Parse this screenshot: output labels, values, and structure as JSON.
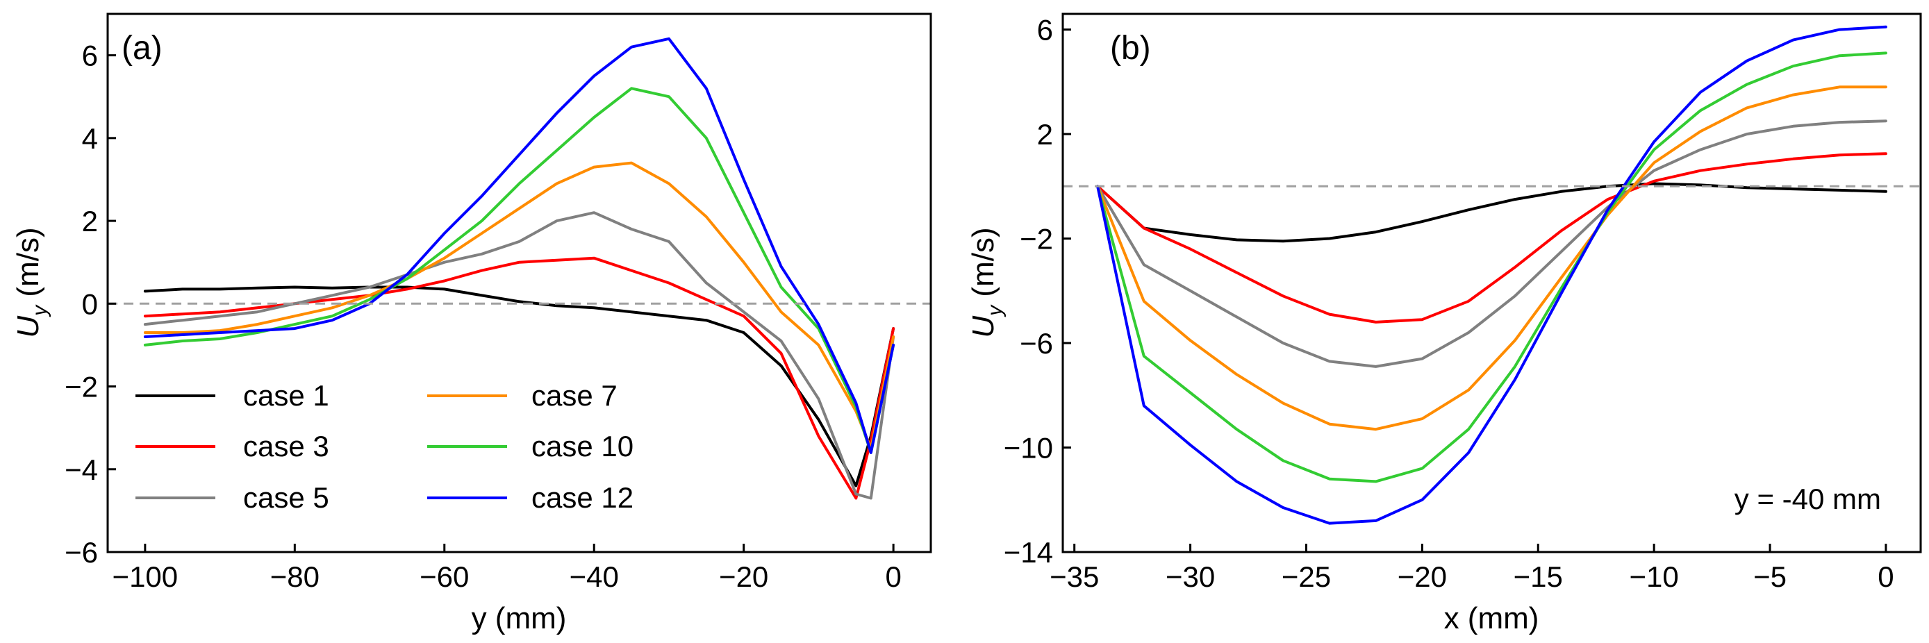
{
  "chart_data": [
    {
      "type": "line",
      "panel_label": "(a)",
      "xlabel": "y (mm)",
      "ylabel_main": "U",
      "ylabel_sub": "y",
      "ylabel_unit": " (m/s)",
      "xlim": [
        -105,
        5
      ],
      "ylim": [
        -6,
        7
      ],
      "xticks": [
        -100,
        -80,
        -60,
        -40,
        -20,
        0
      ],
      "xtick_labels": [
        "−100",
        "−80",
        "−60",
        "−40",
        "−20",
        "0"
      ],
      "yticks": [
        -6,
        -4,
        -2,
        0,
        2,
        4,
        6
      ],
      "ytick_labels": [
        "−6",
        "−4",
        "−2",
        "0",
        "2",
        "4",
        "6"
      ],
      "zero_line": 0,
      "legend_location": "lower-left",
      "series": [
        {
          "name": "case 1",
          "color": "#000000",
          "x": [
            -100,
            -95,
            -90,
            -85,
            -80,
            -75,
            -70,
            -65,
            -60,
            -55,
            -50,
            -45,
            -40,
            -35,
            -30,
            -25,
            -20,
            -15,
            -10,
            -5,
            -3,
            0
          ],
          "y": [
            0.3,
            0.35,
            0.35,
            0.38,
            0.4,
            0.38,
            0.4,
            0.4,
            0.35,
            0.2,
            0.05,
            -0.05,
            -0.1,
            -0.2,
            -0.3,
            -0.4,
            -0.7,
            -1.5,
            -2.8,
            -4.4,
            -3.2,
            -0.6
          ]
        },
        {
          "name": "case 3",
          "color": "#ff0000",
          "x": [
            -100,
            -95,
            -90,
            -85,
            -80,
            -75,
            -70,
            -65,
            -60,
            -55,
            -50,
            -45,
            -40,
            -35,
            -30,
            -25,
            -20,
            -15,
            -10,
            -5,
            -3,
            0
          ],
          "y": [
            -0.3,
            -0.25,
            -0.2,
            -0.1,
            0,
            0.1,
            0.2,
            0.35,
            0.55,
            0.8,
            1.0,
            1.05,
            1.1,
            0.8,
            0.5,
            0.1,
            -0.3,
            -1.2,
            -3.2,
            -4.7,
            -3.3,
            -0.6
          ]
        },
        {
          "name": "case 5",
          "color": "#808080",
          "x": [
            -100,
            -95,
            -90,
            -85,
            -80,
            -75,
            -70,
            -65,
            -60,
            -55,
            -50,
            -45,
            -40,
            -35,
            -30,
            -25,
            -20,
            -15,
            -10,
            -5,
            -3,
            0
          ],
          "y": [
            -0.5,
            -0.4,
            -0.3,
            -0.2,
            0,
            0.2,
            0.4,
            0.7,
            1.0,
            1.2,
            1.5,
            2.0,
            2.2,
            1.8,
            1.5,
            0.5,
            -0.2,
            -0.9,
            -2.3,
            -4.6,
            -4.7,
            -0.8
          ]
        },
        {
          "name": "case 7",
          "color": "#ff8c00",
          "x": [
            -100,
            -95,
            -90,
            -85,
            -80,
            -75,
            -70,
            -65,
            -60,
            -55,
            -50,
            -45,
            -40,
            -35,
            -30,
            -25,
            -20,
            -15,
            -10,
            -5,
            -3,
            0
          ],
          "y": [
            -0.7,
            -0.7,
            -0.65,
            -0.5,
            -0.3,
            -0.1,
            0.2,
            0.6,
            1.1,
            1.7,
            2.3,
            2.9,
            3.3,
            3.4,
            2.9,
            2.1,
            1.0,
            -0.2,
            -1.0,
            -2.6,
            -3.5,
            -0.8
          ]
        },
        {
          "name": "case 10",
          "color": "#33cc33",
          "x": [
            -100,
            -95,
            -90,
            -85,
            -80,
            -75,
            -70,
            -65,
            -60,
            -55,
            -50,
            -45,
            -40,
            -35,
            -30,
            -25,
            -20,
            -15,
            -10,
            -5,
            -3,
            0
          ],
          "y": [
            -1.0,
            -0.9,
            -0.85,
            -0.7,
            -0.5,
            -0.3,
            0.1,
            0.6,
            1.3,
            2.0,
            2.9,
            3.7,
            4.5,
            5.2,
            5.0,
            4.0,
            2.2,
            0.4,
            -0.6,
            -2.5,
            -3.6,
            -1.0
          ]
        },
        {
          "name": "case 12",
          "color": "#0000ff",
          "x": [
            -100,
            -95,
            -90,
            -85,
            -80,
            -75,
            -70,
            -65,
            -60,
            -55,
            -50,
            -45,
            -40,
            -35,
            -30,
            -25,
            -20,
            -15,
            -10,
            -5,
            -3,
            0
          ],
          "y": [
            -0.8,
            -0.75,
            -0.7,
            -0.65,
            -0.6,
            -0.4,
            0,
            0.7,
            1.7,
            2.6,
            3.6,
            4.6,
            5.5,
            6.2,
            6.4,
            5.2,
            3.0,
            0.9,
            -0.5,
            -2.4,
            -3.6,
            -1.0
          ]
        }
      ]
    },
    {
      "type": "line",
      "panel_label": "(b)",
      "xlabel": "x (mm)",
      "ylabel_main": "U",
      "ylabel_sub": "y",
      "ylabel_unit": " (m/s)",
      "annotation": "y = -40 mm",
      "xlim": [
        -35.5,
        1.5
      ],
      "ylim": [
        -14,
        6.6
      ],
      "xticks": [
        -35,
        -30,
        -25,
        -20,
        -15,
        -10,
        -5,
        0
      ],
      "xtick_labels": [
        "−35",
        "−30",
        "−25",
        "−20",
        "−15",
        "−10",
        "−5",
        "0"
      ],
      "yticks": [
        -14,
        -10,
        -6,
        -2,
        2,
        6
      ],
      "ytick_labels": [
        "−14",
        "−10",
        "−6",
        "−2",
        "2",
        "6"
      ],
      "zero_line": 0,
      "series": [
        {
          "name": "case 1",
          "color": "#000000",
          "x": [
            -34,
            -32,
            -30,
            -28,
            -26,
            -24,
            -22,
            -20,
            -18,
            -16,
            -14,
            -12,
            -10,
            -8,
            -6,
            -4,
            -2,
            0
          ],
          "y": [
            0,
            -1.6,
            -1.85,
            -2.05,
            -2.1,
            -2.0,
            -1.75,
            -1.35,
            -0.9,
            -0.5,
            -0.2,
            0,
            0.1,
            0.05,
            -0.05,
            -0.1,
            -0.15,
            -0.2
          ]
        },
        {
          "name": "case 3",
          "color": "#ff0000",
          "x": [
            -34,
            -32,
            -30,
            -28,
            -26,
            -24,
            -22,
            -20,
            -18,
            -16,
            -14,
            -12,
            -10,
            -8,
            -6,
            -4,
            -2,
            0
          ],
          "y": [
            0,
            -1.6,
            -2.4,
            -3.3,
            -4.2,
            -4.9,
            -5.2,
            -5.1,
            -4.4,
            -3.1,
            -1.7,
            -0.5,
            0.2,
            0.6,
            0.85,
            1.05,
            1.2,
            1.25
          ]
        },
        {
          "name": "case 5",
          "color": "#808080",
          "x": [
            -34,
            -32,
            -30,
            -28,
            -26,
            -24,
            -22,
            -20,
            -18,
            -16,
            -14,
            -12,
            -10,
            -8,
            -6,
            -4,
            -2,
            0
          ],
          "y": [
            0,
            -3.0,
            -4.0,
            -5.0,
            -6.0,
            -6.7,
            -6.9,
            -6.6,
            -5.6,
            -4.2,
            -2.5,
            -0.8,
            0.6,
            1.4,
            2.0,
            2.3,
            2.45,
            2.5
          ]
        },
        {
          "name": "case 7",
          "color": "#ff8c00",
          "x": [
            -34,
            -32,
            -30,
            -28,
            -26,
            -24,
            -22,
            -20,
            -18,
            -16,
            -14,
            -12,
            -10,
            -8,
            -6,
            -4,
            -2,
            0
          ],
          "y": [
            0,
            -4.4,
            -5.9,
            -7.2,
            -8.3,
            -9.1,
            -9.3,
            -8.9,
            -7.8,
            -5.9,
            -3.5,
            -1.1,
            0.9,
            2.1,
            3.0,
            3.5,
            3.8,
            3.8
          ]
        },
        {
          "name": "case 10",
          "color": "#33cc33",
          "x": [
            -34,
            -32,
            -30,
            -28,
            -26,
            -24,
            -22,
            -20,
            -18,
            -16,
            -14,
            -12,
            -10,
            -8,
            -6,
            -4,
            -2,
            0
          ],
          "y": [
            0,
            -6.5,
            -7.9,
            -9.3,
            -10.5,
            -11.2,
            -11.3,
            -10.8,
            -9.3,
            -6.9,
            -3.9,
            -1.0,
            1.4,
            2.9,
            3.9,
            4.6,
            5.0,
            5.1
          ]
        },
        {
          "name": "case 12",
          "color": "#0000ff",
          "x": [
            -34,
            -32,
            -30,
            -28,
            -26,
            -24,
            -22,
            -20,
            -18,
            -16,
            -14,
            -12,
            -10,
            -8,
            -6,
            -4,
            -2,
            0
          ],
          "y": [
            0,
            -8.4,
            -9.9,
            -11.3,
            -12.3,
            -12.9,
            -12.8,
            -12.0,
            -10.2,
            -7.4,
            -4.1,
            -0.9,
            1.7,
            3.6,
            4.8,
            5.6,
            6.0,
            6.1
          ]
        }
      ]
    }
  ]
}
